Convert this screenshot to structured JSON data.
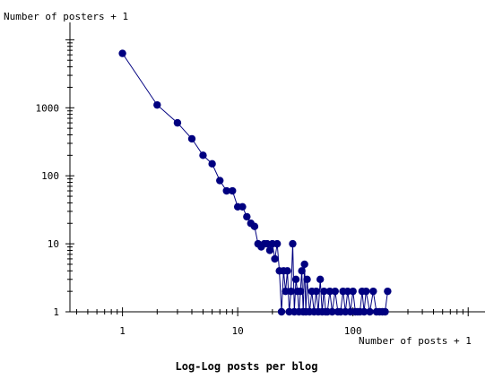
{
  "chart_data": {
    "type": "scatter",
    "title": "Log-Log posts per blog",
    "xlabel": "Number of posts + 1",
    "ylabel": "Number of posters + 1",
    "x_scale": "log",
    "y_scale": "log",
    "xlim": [
      0.35,
      1400
    ],
    "ylim": [
      1,
      18000
    ],
    "x_ticks": [
      1,
      10,
      100
    ],
    "y_ticks": [
      1,
      10,
      100,
      1000
    ],
    "x_tick_labels": [
      "1",
      "10",
      "100"
    ],
    "y_tick_labels": [
      "1",
      "10",
      "100",
      "1000"
    ],
    "grid": false,
    "legend": "none",
    "colors": {
      "series": "#000080",
      "axis": "#000000",
      "text": "#000000"
    },
    "series": [
      {
        "x": [
          1,
          2,
          3,
          4,
          5,
          6,
          7,
          8,
          9,
          10,
          11,
          12,
          13,
          14,
          15,
          16,
          17,
          18,
          19,
          20,
          21,
          22,
          23,
          24,
          25,
          26,
          27,
          28,
          29,
          30,
          31,
          32,
          33,
          34,
          35,
          36,
          37,
          38,
          39,
          40,
          42,
          44,
          46,
          48,
          50,
          52,
          54,
          56,
          58,
          60,
          63,
          66,
          70,
          74,
          78,
          82,
          86,
          90,
          95,
          100,
          105,
          110,
          115,
          120,
          125,
          130,
          140,
          150,
          160,
          170,
          180,
          190,
          200
        ],
        "y": [
          6300,
          1100,
          600,
          350,
          200,
          150,
          85,
          60,
          60,
          35,
          35,
          25,
          20,
          18,
          10,
          9,
          10,
          10,
          8,
          10,
          6,
          10,
          4,
          1,
          4,
          2,
          4,
          1,
          2,
          10,
          1,
          3,
          2,
          1,
          2,
          4,
          1,
          5,
          1,
          3,
          1,
          2,
          1,
          2,
          1,
          3,
          1,
          2,
          1,
          1,
          2,
          1,
          2,
          1,
          1,
          2,
          1,
          2,
          1,
          2,
          1,
          1,
          1,
          2,
          1,
          2,
          1,
          2,
          1,
          1,
          1,
          1,
          2
        ]
      }
    ]
  }
}
